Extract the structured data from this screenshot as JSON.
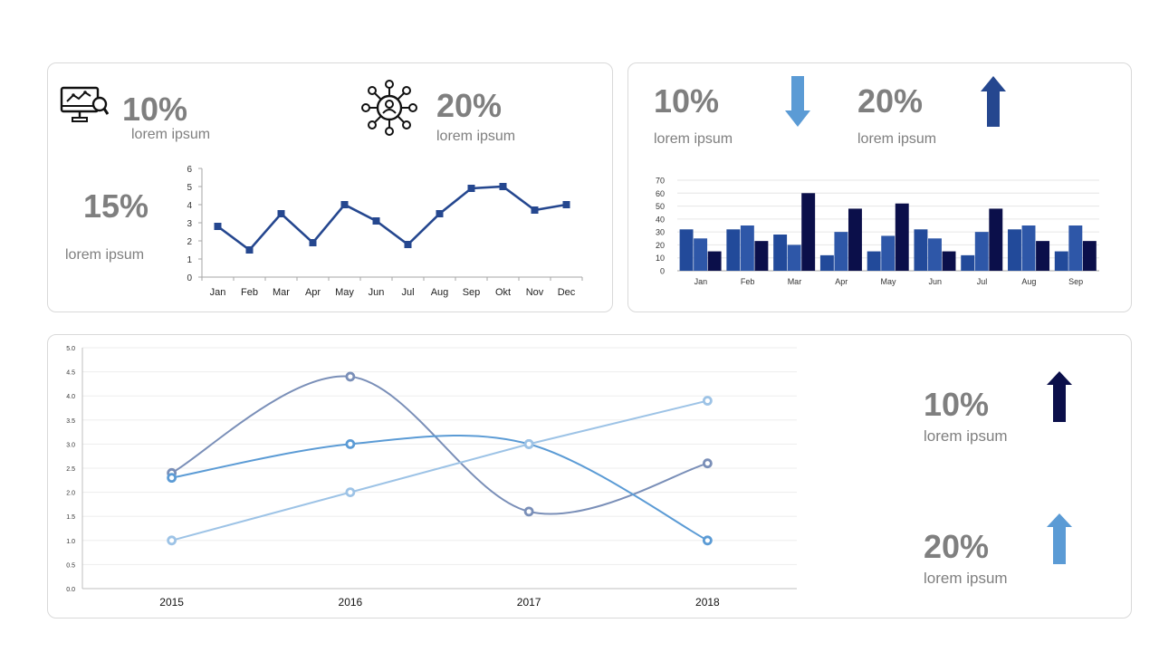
{
  "colors": {
    "dark_navy": "#0b0f4a",
    "blue": "#1f4491",
    "mid_blue": "#25478f",
    "sky_blue": "#5b9bd5",
    "light_blue": "#9dc3e6",
    "slate_blue": "#7a8fb8",
    "text_gray": "#7f7f7f"
  },
  "panel_top_left": {
    "stat_a": {
      "value": "10%",
      "label": "lorem ipsum",
      "icon": "monitor-analytics-icon"
    },
    "stat_b": {
      "value": "20%",
      "label": "lorem ipsum",
      "icon": "network-user-icon"
    },
    "stat_c": {
      "value": "15%",
      "label": "lorem ipsum"
    }
  },
  "panel_top_right": {
    "stat_a": {
      "value": "10%",
      "label": "lorem ipsum",
      "icon": "arrow-down-icon"
    },
    "stat_b": {
      "value": "20%",
      "label": "lorem ipsum",
      "icon": "arrow-up-icon"
    }
  },
  "panel_bottom": {
    "stat_a": {
      "value": "10%",
      "label": "lorem ipsum",
      "icon": "arrow-up-icon"
    },
    "stat_b": {
      "value": "20%",
      "label": "lorem ipsum",
      "icon": "arrow-up-icon"
    }
  },
  "chart_data": [
    {
      "type": "line",
      "categories": [
        "Jan",
        "Feb",
        "Mar",
        "Apr",
        "May",
        "Jun",
        "Jul",
        "Aug",
        "Sep",
        "Okt",
        "Nov",
        "Dec"
      ],
      "series": [
        {
          "values": [
            2.8,
            1.5,
            3.5,
            1.9,
            4.0,
            3.1,
            1.8,
            3.5,
            4.9,
            5.0,
            3.7,
            4.0
          ]
        }
      ],
      "yticks": [
        "0",
        "1",
        "2",
        "3",
        "4",
        "5",
        "6"
      ],
      "ylim": [
        0,
        6
      ],
      "grid": false
    },
    {
      "type": "bar",
      "categories": [
        "Jan",
        "Feb",
        "Mar",
        "Apr",
        "May",
        "Jun",
        "Jul",
        "Aug",
        "Sep"
      ],
      "series": [
        {
          "values": [
            32,
            32,
            28,
            12,
            15,
            32,
            12,
            32,
            15
          ]
        },
        {
          "values": [
            25,
            35,
            20,
            30,
            27,
            25,
            30,
            35,
            35
          ]
        },
        {
          "values": [
            15,
            23,
            60,
            48,
            52,
            15,
            48,
            23,
            23
          ]
        }
      ],
      "yticks": [
        "0",
        "10",
        "20",
        "30",
        "40",
        "50",
        "60",
        "70"
      ],
      "ylim": [
        0,
        70
      ],
      "grid": true
    },
    {
      "type": "line",
      "categories": [
        "2015",
        "2016",
        "2017",
        "2018"
      ],
      "series": [
        {
          "values": [
            2.4,
            4.4,
            1.6,
            2.6
          ]
        },
        {
          "values": [
            2.3,
            3.0,
            3.0,
            1.0
          ]
        },
        {
          "values": [
            1.0,
            2.0,
            3.0,
            3.9
          ]
        }
      ],
      "yticks": [
        "0.0",
        "0.5",
        "1.0",
        "1.5",
        "2.0",
        "2.5",
        "3.0",
        "3.5",
        "4.0",
        "4.5",
        "5.0"
      ],
      "ylim": [
        0,
        5
      ],
      "grid": true
    }
  ]
}
